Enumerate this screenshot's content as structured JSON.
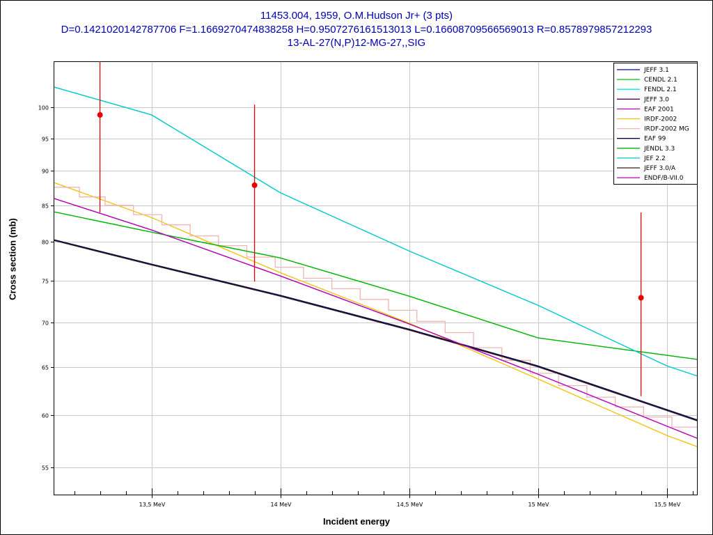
{
  "chart_data": {
    "type": "line",
    "title": "11453.004, 1959, O.M.Hudson Jr+ (3 pts)",
    "subtitle": "D=0.1421020142787706 F=1.1669270474838258 H=0.9507276161513013 L=0.16608709566569013 R=0.8578979857212293",
    "reaction": "13-AL-27(N,P)12-MG-27,,SIG",
    "xlabel": "Incident energy",
    "ylabel": "Cross section (mb)",
    "xlim": [
      13.12,
      15.62
    ],
    "ylim": [
      52.5,
      108
    ],
    "yscale": "log",
    "x_ticks": [
      {
        "v": 13.5,
        "label": "13,5 MeV"
      },
      {
        "v": 14.0,
        "label": "14 MeV"
      },
      {
        "v": 14.5,
        "label": "14,5 MeV"
      },
      {
        "v": 15.0,
        "label": "15 MeV"
      },
      {
        "v": 15.5,
        "label": "15,5 MeV"
      }
    ],
    "y_ticks": [
      {
        "v": 55,
        "label": "55"
      },
      {
        "v": 60,
        "label": "60"
      },
      {
        "v": 65,
        "label": "65"
      },
      {
        "v": 70,
        "label": "70"
      },
      {
        "v": 75,
        "label": "75"
      },
      {
        "v": 80,
        "label": "80"
      },
      {
        "v": 85,
        "label": "85"
      },
      {
        "v": 90,
        "label": "90"
      },
      {
        "v": 95,
        "label": "95"
      },
      {
        "v": 100,
        "label": "100"
      }
    ],
    "grid": true,
    "legend_position": "top-right",
    "series": [
      {
        "name": "JEFF 3.1",
        "color": "#0000b4",
        "x": [
          13.12,
          13.5,
          14.0,
          14.5,
          15.0,
          15.62
        ],
        "y": [
          80.2,
          77.0,
          73.1,
          69.1,
          65.0,
          59.4
        ]
      },
      {
        "name": "CENDL 2.1",
        "color": "#00c800",
        "x": [
          13.12,
          13.5,
          14.0,
          14.5,
          15.0,
          15.62
        ],
        "y": [
          84.1,
          81.3,
          77.9,
          73.1,
          68.2,
          65.8
        ]
      },
      {
        "name": "FENDL 2.1",
        "color": "#00e6e6",
        "x": [
          13.12,
          13.5,
          14.0,
          14.5,
          15.0,
          15.5,
          15.62
        ],
        "y": [
          103.5,
          98.8,
          86.8,
          78.8,
          72.0,
          65.1,
          64.0
        ]
      },
      {
        "name": "JEFF 3.0",
        "color": "#5a005a",
        "x": [
          13.12,
          13.5,
          14.0,
          14.5,
          15.0,
          15.62
        ],
        "y": [
          80.2,
          77.0,
          73.1,
          69.1,
          65.0,
          59.4
        ]
      },
      {
        "name": "EAF 2001",
        "color": "#c800c8",
        "x": [
          13.12,
          13.5,
          14.0,
          14.5,
          15.0,
          15.5,
          15.62
        ],
        "y": [
          86.0,
          81.6,
          75.6,
          69.8,
          64.2,
          58.9,
          57.7
        ]
      },
      {
        "name": "IRDF-2002",
        "color": "#f0c000",
        "x": [
          13.12,
          13.5,
          14.0,
          14.5,
          15.0,
          15.5,
          15.62
        ],
        "y": [
          88.3,
          83.3,
          76.0,
          69.9,
          63.7,
          58.0,
          56.9
        ]
      },
      {
        "name": "IRDF-2002 MG",
        "color": "#f0b4b4",
        "x": [
          13.12,
          13.22,
          13.32,
          13.43,
          13.54,
          13.65,
          13.76,
          13.87,
          13.98,
          14.09,
          14.2,
          14.31,
          14.42,
          14.53,
          14.64,
          14.75,
          14.86,
          14.97,
          15.08,
          15.19,
          15.3,
          15.41,
          15.52,
          15.62
        ],
        "y": [
          87.6,
          86.2,
          85.0,
          83.7,
          82.3,
          80.8,
          79.5,
          78.0,
          76.7,
          75.3,
          74.0,
          72.7,
          71.4,
          70.1,
          68.8,
          67.1,
          65.7,
          64.3,
          63.0,
          61.8,
          60.8,
          59.8,
          58.8,
          57.8
        ]
      },
      {
        "name": "EAF 99",
        "color": "#00004b",
        "x": [
          13.12,
          13.5,
          14.0,
          14.5,
          15.0,
          15.62
        ],
        "y": [
          80.3,
          77.1,
          73.2,
          69.2,
          65.1,
          59.5
        ]
      },
      {
        "name": "JENDL 3.3",
        "color": "#00b400",
        "x": [
          13.12,
          13.5,
          14.0,
          14.5,
          15.0,
          15.62
        ],
        "y": [
          84.1,
          81.3,
          77.9,
          73.1,
          68.2,
          65.8
        ]
      },
      {
        "name": "JEF 2.2",
        "color": "#00c8c8",
        "x": [
          13.12,
          13.5,
          14.0,
          14.5,
          15.0,
          15.5,
          15.62
        ],
        "y": [
          103.5,
          98.8,
          86.8,
          78.8,
          72.0,
          65.1,
          64.0
        ]
      },
      {
        "name": "JEFF 3.0/A",
        "color": "#321e1e",
        "x": [
          13.12,
          13.5,
          14.0,
          14.5,
          15.0,
          15.62
        ],
        "y": [
          80.2,
          77.0,
          73.1,
          69.1,
          65.0,
          59.4
        ]
      },
      {
        "name": "ENDF/B-VII.0",
        "color": "#b400b4",
        "x": [
          13.12,
          13.5,
          14.0,
          14.5,
          15.0,
          15.5,
          15.62
        ],
        "y": [
          86.0,
          81.6,
          75.6,
          69.8,
          64.2,
          58.9,
          57.7
        ]
      }
    ],
    "experimental": {
      "color": "#e60000",
      "points": [
        {
          "x": 13.3,
          "y": 98.8,
          "ylo": 84.0,
          "yhi": 108.0
        },
        {
          "x": 13.9,
          "y": 87.9,
          "ylo": 74.9,
          "yhi": 100.5
        },
        {
          "x": 15.4,
          "y": 72.9,
          "ylo": 61.9,
          "yhi": 84.0
        }
      ]
    }
  }
}
